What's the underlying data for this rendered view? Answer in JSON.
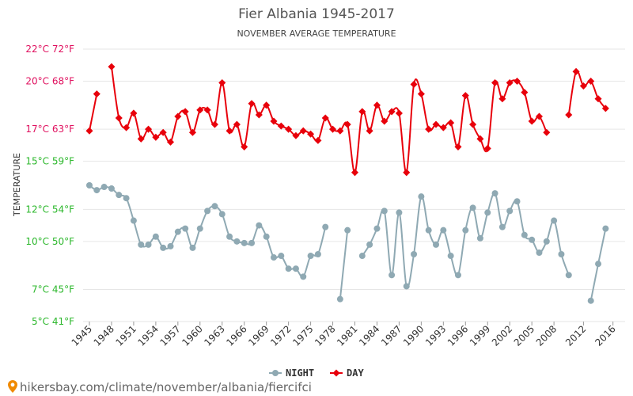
{
  "chart_data": {
    "type": "line",
    "title": "Fier Albania 1945-2017",
    "subtitle": "NOVEMBER AVERAGE TEMPERATURE",
    "ylabel": "TEMPERATURE",
    "xlabel": "",
    "ylim": [
      5,
      22
    ],
    "xlim": [
      1945,
      2017
    ],
    "y_ticks": [
      {
        "value": 22,
        "label": "22°C 72°F",
        "color": "#e0115f"
      },
      {
        "value": 20,
        "label": "20°C 68°F",
        "color": "#e0115f"
      },
      {
        "value": 17,
        "label": "17°C 63°F",
        "color": "#e0115f"
      },
      {
        "value": 15,
        "label": "15°C 59°F",
        "color": "#2db82d"
      },
      {
        "value": 12,
        "label": "12°C 54°F",
        "color": "#2db82d"
      },
      {
        "value": 10,
        "label": "10°C 50°F",
        "color": "#2db82d"
      },
      {
        "value": 7,
        "label": "7°C 45°F",
        "color": "#2db82d"
      },
      {
        "value": 5,
        "label": "5°C 41°F",
        "color": "#2db82d"
      }
    ],
    "x_ticks": [
      "1945",
      "1948",
      "1951",
      "1954",
      "1957",
      "1960",
      "1963",
      "1966",
      "1969",
      "1972",
      "1975",
      "1978",
      "1981",
      "1984",
      "1987",
      "1990",
      "1993",
      "1996",
      "1999",
      "2002",
      "2005",
      "2008",
      "2012",
      "2016"
    ],
    "legend_position": "bottom",
    "grid": true,
    "series": [
      {
        "name": "NIGHT",
        "color": "#8fa9b3",
        "points": [
          [
            1945,
            13.5
          ],
          [
            1946,
            13.2
          ],
          [
            1947,
            13.4
          ],
          [
            1948,
            13.3
          ],
          [
            1949,
            12.9
          ],
          [
            1950,
            12.7
          ],
          [
            1951,
            11.3
          ],
          [
            1952,
            9.8
          ],
          [
            1953,
            9.8
          ],
          [
            1954,
            10.3
          ],
          [
            1955,
            9.6
          ],
          [
            1956,
            9.7
          ],
          [
            1957,
            10.6
          ],
          [
            1958,
            10.8
          ],
          [
            1959,
            9.6
          ],
          [
            1960,
            10.8
          ],
          [
            1961,
            11.9
          ],
          [
            1962,
            12.2
          ],
          [
            1963,
            11.7
          ],
          [
            1964,
            10.3
          ],
          [
            1965,
            10.0
          ],
          [
            1966,
            9.9
          ],
          [
            1967,
            9.9
          ],
          [
            1968,
            11.0
          ],
          [
            1969,
            10.3
          ],
          [
            1970,
            9.0
          ],
          [
            1971,
            9.1
          ],
          [
            1972,
            8.3
          ],
          [
            1973,
            8.3
          ],
          [
            1974,
            7.8
          ],
          [
            1975,
            9.1
          ],
          [
            1976,
            9.2
          ],
          [
            1977,
            10.9
          ],
          [
            1978,
            null
          ],
          [
            1979,
            6.4
          ],
          [
            1980,
            10.7
          ],
          [
            1981,
            null
          ],
          [
            1982,
            9.1
          ],
          [
            1983,
            9.8
          ],
          [
            1984,
            10.8
          ],
          [
            1985,
            11.9
          ],
          [
            1986,
            7.9
          ],
          [
            1987,
            11.8
          ],
          [
            1988,
            7.2
          ],
          [
            1989,
            9.2
          ],
          [
            1990,
            12.8
          ],
          [
            1991,
            10.7
          ],
          [
            1992,
            9.8
          ],
          [
            1993,
            10.7
          ],
          [
            1994,
            9.1
          ],
          [
            1995,
            7.9
          ],
          [
            1996,
            10.7
          ],
          [
            1997,
            12.1
          ],
          [
            1998,
            10.2
          ],
          [
            1999,
            11.8
          ],
          [
            2000,
            13.0
          ],
          [
            2001,
            10.9
          ],
          [
            2002,
            11.9
          ],
          [
            2003,
            12.5
          ],
          [
            2004,
            10.4
          ],
          [
            2005,
            10.1
          ],
          [
            2006,
            9.3
          ],
          [
            2007,
            10.0
          ],
          [
            2008,
            11.3
          ],
          [
            2009,
            9.2
          ],
          [
            2010,
            7.9
          ],
          [
            2011,
            null
          ],
          [
            2012,
            null
          ],
          [
            2013,
            6.3
          ],
          [
            2014,
            8.6
          ],
          [
            2015,
            10.8
          ]
        ]
      },
      {
        "name": "DAY",
        "color": "#e8000b",
        "points": [
          [
            1945,
            16.9
          ],
          [
            1946,
            19.2
          ],
          [
            1947,
            null
          ],
          [
            1948,
            20.9
          ],
          [
            1949,
            17.7
          ],
          [
            1950,
            17.1
          ],
          [
            1951,
            18.0
          ],
          [
            1952,
            16.4
          ],
          [
            1953,
            17.0
          ],
          [
            1954,
            16.5
          ],
          [
            1955,
            16.8
          ],
          [
            1956,
            16.2
          ],
          [
            1957,
            17.8
          ],
          [
            1958,
            18.1
          ],
          [
            1959,
            16.8
          ],
          [
            1960,
            18.2
          ],
          [
            1961,
            18.2
          ],
          [
            1962,
            17.3
          ],
          [
            1963,
            19.9
          ],
          [
            1964,
            16.9
          ],
          [
            1965,
            17.3
          ],
          [
            1966,
            15.9
          ],
          [
            1967,
            18.6
          ],
          [
            1968,
            17.9
          ],
          [
            1969,
            18.5
          ],
          [
            1970,
            17.5
          ],
          [
            1971,
            17.2
          ],
          [
            1972,
            17.0
          ],
          [
            1973,
            16.6
          ],
          [
            1974,
            16.9
          ],
          [
            1975,
            16.7
          ],
          [
            1976,
            16.3
          ],
          [
            1977,
            17.7
          ],
          [
            1978,
            17.0
          ],
          [
            1979,
            16.9
          ],
          [
            1980,
            17.3
          ],
          [
            1981,
            14.3
          ],
          [
            1982,
            18.1
          ],
          [
            1983,
            16.9
          ],
          [
            1984,
            18.5
          ],
          [
            1985,
            17.5
          ],
          [
            1986,
            18.1
          ],
          [
            1987,
            18.0
          ],
          [
            1988,
            14.3
          ],
          [
            1989,
            19.8
          ],
          [
            1990,
            19.2
          ],
          [
            1991,
            17.0
          ],
          [
            1992,
            17.3
          ],
          [
            1993,
            17.1
          ],
          [
            1994,
            17.4
          ],
          [
            1995,
            15.9
          ],
          [
            1996,
            19.1
          ],
          [
            1997,
            17.3
          ],
          [
            1998,
            16.4
          ],
          [
            1999,
            15.8
          ],
          [
            2000,
            19.9
          ],
          [
            2001,
            18.9
          ],
          [
            2002,
            19.9
          ],
          [
            2003,
            20.0
          ],
          [
            2004,
            19.3
          ],
          [
            2005,
            17.5
          ],
          [
            2006,
            17.8
          ],
          [
            2007,
            16.8
          ],
          [
            2008,
            null
          ],
          [
            2009,
            null
          ],
          [
            2010,
            17.9
          ],
          [
            2011,
            20.6
          ],
          [
            2012,
            19.7
          ],
          [
            2013,
            20.0
          ],
          [
            2014,
            18.9
          ],
          [
            2015,
            18.3
          ]
        ]
      }
    ]
  },
  "footer": {
    "url": "hikersbay.com/climate/november/albania/fiercifci"
  }
}
